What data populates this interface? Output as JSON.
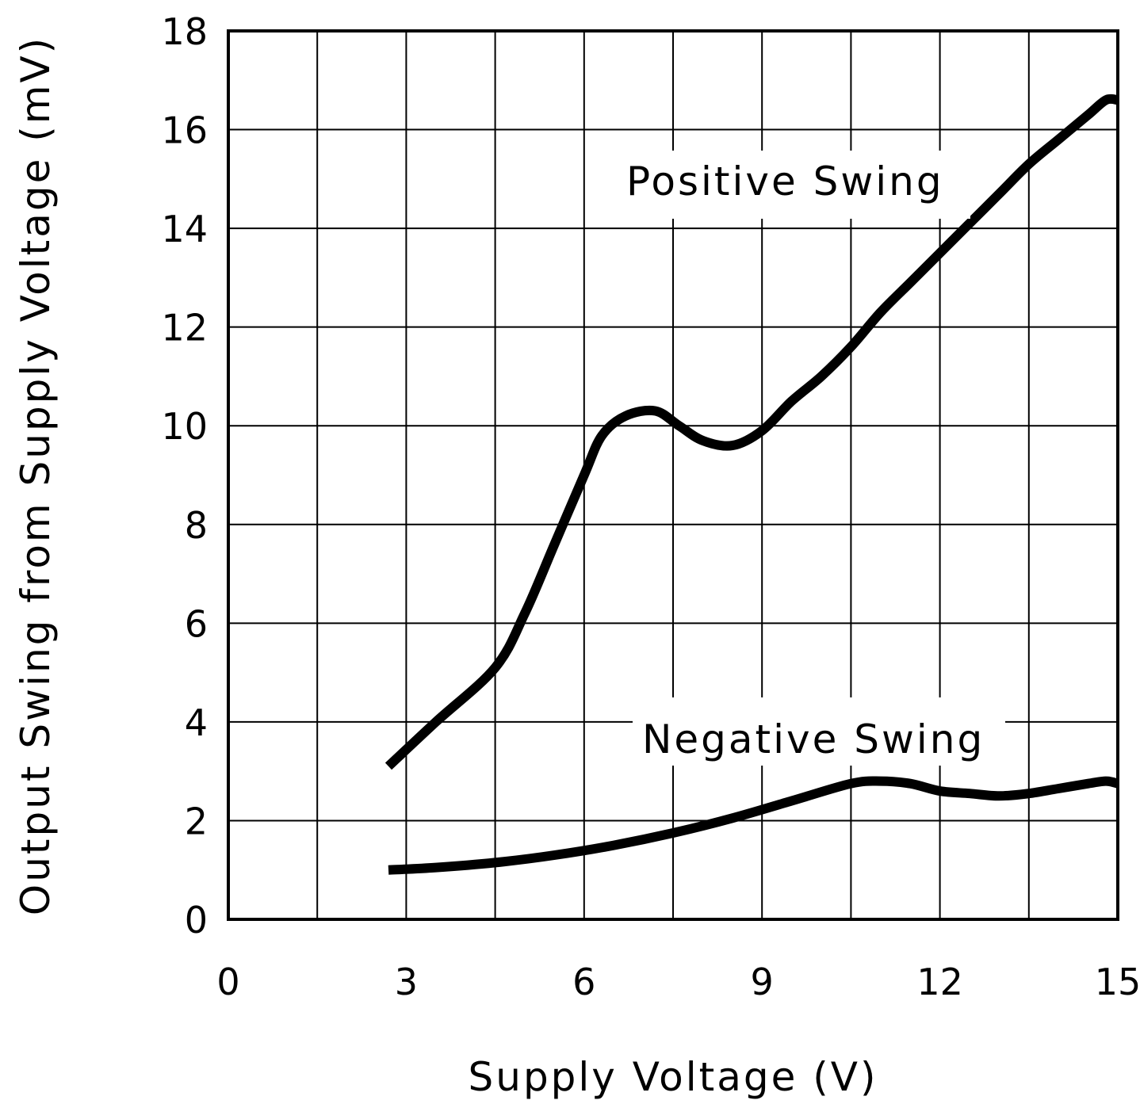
{
  "chart_data": {
    "type": "line",
    "title": "",
    "xlabel": "Supply Voltage (V)",
    "ylabel": "Output Swing from Supply Voltage (mV)",
    "xlim": [
      0,
      15
    ],
    "ylim": [
      0,
      18
    ],
    "xticks": [
      0,
      3,
      6,
      9,
      12,
      15
    ],
    "yticks": [
      0,
      2,
      4,
      6,
      8,
      10,
      12,
      14,
      16,
      18
    ],
    "x_grid_step": 1.5,
    "grid": true,
    "colors": {
      "line": "#000000",
      "grid": "#000000",
      "background": "#ffffff"
    },
    "series": [
      {
        "name": "Positive Swing",
        "x": [
          2.7,
          3.5,
          4.5,
          5.0,
          5.5,
          6.0,
          6.3,
          6.7,
          7.2,
          7.6,
          8.0,
          8.5,
          9.0,
          9.5,
          10.0,
          10.5,
          11.0,
          11.5,
          12.0,
          12.5,
          13.0,
          13.5,
          14.0,
          14.5,
          14.8,
          15.0
        ],
        "y": [
          3.1,
          4.0,
          5.1,
          6.2,
          7.6,
          9.0,
          9.8,
          10.2,
          10.3,
          10.0,
          9.7,
          9.6,
          9.9,
          10.5,
          11.0,
          11.6,
          12.3,
          12.9,
          13.5,
          14.1,
          14.7,
          15.3,
          15.8,
          16.3,
          16.6,
          16.6
        ]
      },
      {
        "name": "Negative Swing",
        "x": [
          2.7,
          3.5,
          4.5,
          5.5,
          6.5,
          7.5,
          8.5,
          9.5,
          10.5,
          11.0,
          11.5,
          12.0,
          12.5,
          13.0,
          13.5,
          14.0,
          14.5,
          14.8,
          15.0
        ],
        "y": [
          1.0,
          1.05,
          1.15,
          1.3,
          1.5,
          1.75,
          2.05,
          2.4,
          2.75,
          2.8,
          2.75,
          2.6,
          2.55,
          2.5,
          2.55,
          2.65,
          2.75,
          2.8,
          2.75
        ]
      }
    ]
  }
}
